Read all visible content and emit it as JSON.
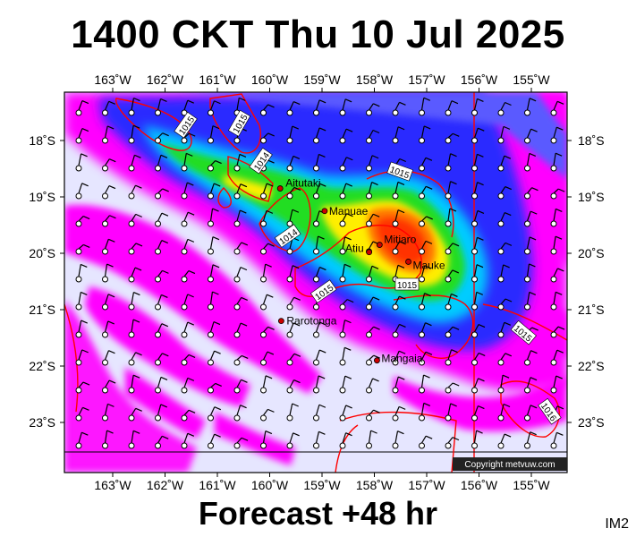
{
  "title": "1400 CKT Thu 10 Jul 2025",
  "forecast_label": "Forecast +48 hr",
  "corner_label": "IM2",
  "copyright": "Copyright metvuw.com",
  "lon_labels": [
    "163˚W",
    "162˚W",
    "161˚W",
    "160˚W",
    "159˚W",
    "158˚W",
    "157˚W",
    "156˚W",
    "155˚W"
  ],
  "lat_labels": [
    "18˚S",
    "19˚S",
    "20˚S",
    "21˚S",
    "22˚S",
    "23˚S"
  ],
  "places": [
    {
      "name": "Aitutaki",
      "lon": -159.8,
      "lat": -18.85
    },
    {
      "name": "Manuae",
      "lon": -158.95,
      "lat": -19.25
    },
    {
      "name": "Atiu",
      "lon": -158.1,
      "lat": -19.98
    },
    {
      "name": "Mitiaro",
      "lon": -157.9,
      "lat": -19.85
    },
    {
      "name": "Mauke",
      "lon": -157.35,
      "lat": -20.15
    },
    {
      "name": "Rarotonga",
      "lon": -159.78,
      "lat": -21.2
    },
    {
      "name": "Mangaia",
      "lon": -157.95,
      "lat": -21.9
    }
  ],
  "isobars": [
    {
      "label": "1015"
    },
    {
      "label": "1015"
    },
    {
      "label": "1014"
    },
    {
      "label": "1015"
    },
    {
      "label": "1014"
    },
    {
      "label": "1015"
    },
    {
      "label": "1015"
    },
    {
      "label": "1015"
    },
    {
      "label": "1016"
    }
  ],
  "colors": {
    "background_rain_free": "#e6e6ff",
    "light": "#ff00ff",
    "moderate": "#0000ff",
    "heavy": "#00cc00",
    "peak": "#ff3300",
    "isobar": "#ff0000"
  }
}
